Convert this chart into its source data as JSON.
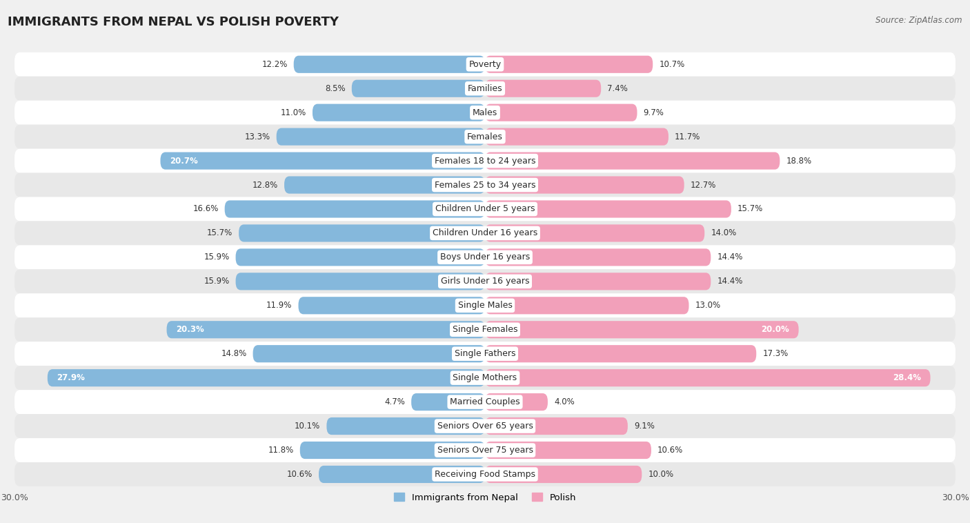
{
  "title": "IMMIGRANTS FROM NEPAL VS POLISH POVERTY",
  "source": "Source: ZipAtlas.com",
  "categories": [
    "Poverty",
    "Families",
    "Males",
    "Females",
    "Females 18 to 24 years",
    "Females 25 to 34 years",
    "Children Under 5 years",
    "Children Under 16 years",
    "Boys Under 16 years",
    "Girls Under 16 years",
    "Single Males",
    "Single Females",
    "Single Fathers",
    "Single Mothers",
    "Married Couples",
    "Seniors Over 65 years",
    "Seniors Over 75 years",
    "Receiving Food Stamps"
  ],
  "nepal_values": [
    12.2,
    8.5,
    11.0,
    13.3,
    20.7,
    12.8,
    16.6,
    15.7,
    15.9,
    15.9,
    11.9,
    20.3,
    14.8,
    27.9,
    4.7,
    10.1,
    11.8,
    10.6
  ],
  "polish_values": [
    10.7,
    7.4,
    9.7,
    11.7,
    18.8,
    12.7,
    15.7,
    14.0,
    14.4,
    14.4,
    13.0,
    20.0,
    17.3,
    28.4,
    4.0,
    9.1,
    10.6,
    10.0
  ],
  "nepal_color": "#85B8DC",
  "polish_color": "#F2A0BA",
  "nepal_label": "Immigrants from Nepal",
  "polish_label": "Polish",
  "axis_limit": 30.0,
  "background_color": "#f0f0f0",
  "row_color_even": "#ffffff",
  "row_color_odd": "#e8e8e8",
  "title_fontsize": 13,
  "label_fontsize": 9,
  "value_fontsize": 8.5,
  "inside_label_threshold": 19.5
}
